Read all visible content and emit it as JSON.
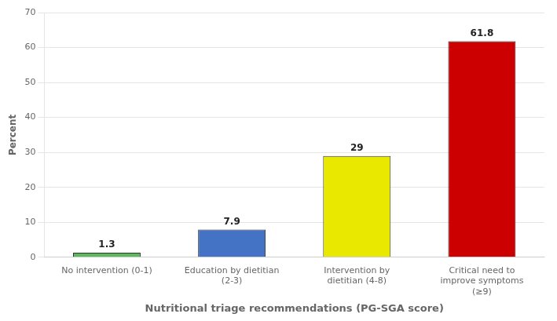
{
  "chart_data": {
    "type": "bar",
    "categories": [
      "No intervention (0-1)",
      "Education by dietitian\n(2-3)",
      "Intervention by\ndietitian (4-8)",
      "Critical need to\nimprove symptoms\n(≥9)"
    ],
    "values": [
      1.3,
      7.9,
      29,
      61.8
    ],
    "colors": [
      "#5cb85c",
      "#4472c4",
      "#e8e800",
      "#cc0000"
    ],
    "xlabel": "Nutritional triage recommendations (PG-SGA score)",
    "ylabel": "Percent",
    "ylim": [
      0,
      70
    ],
    "yticks": [
      0,
      10,
      20,
      30,
      40,
      50,
      60,
      70
    ],
    "grid": true,
    "data_labels": true
  }
}
